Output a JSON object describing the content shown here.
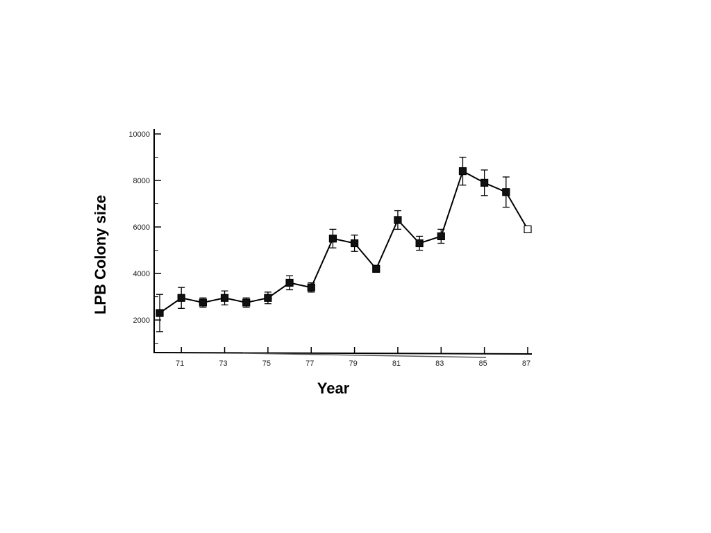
{
  "chart_data": {
    "type": "line",
    "xlabel": "Year",
    "ylabel": "LPB Colony size",
    "xlim": [
      70,
      87
    ],
    "ylim": [
      600,
      10000
    ],
    "x_ticks": [
      71,
      73,
      75,
      77,
      79,
      81,
      83,
      85,
      87
    ],
    "y_ticks": [
      2000,
      4000,
      6000,
      8000,
      10000
    ],
    "y_tick_labels": [
      "2000",
      "4000",
      "6000",
      "8000",
      "10000"
    ],
    "grid": false,
    "legend": "none",
    "series": [
      {
        "x": [
          70,
          71,
          72,
          73,
          74,
          75,
          76,
          77,
          78,
          79,
          80,
          81,
          82,
          83,
          84,
          85,
          86,
          87
        ],
        "y": [
          2300,
          2950,
          2750,
          2950,
          2750,
          2950,
          3600,
          3400,
          5500,
          5300,
          4200,
          6300,
          5300,
          5600,
          8400,
          7900,
          7500,
          5900
        ],
        "err": [
          800,
          450,
          200,
          300,
          200,
          250,
          300,
          200,
          400,
          350,
          150,
          400,
          300,
          300,
          600,
          550,
          650,
          0
        ],
        "marker_open": [
          false,
          false,
          false,
          false,
          false,
          false,
          false,
          false,
          false,
          false,
          false,
          false,
          false,
          false,
          false,
          false,
          false,
          true
        ]
      }
    ]
  }
}
